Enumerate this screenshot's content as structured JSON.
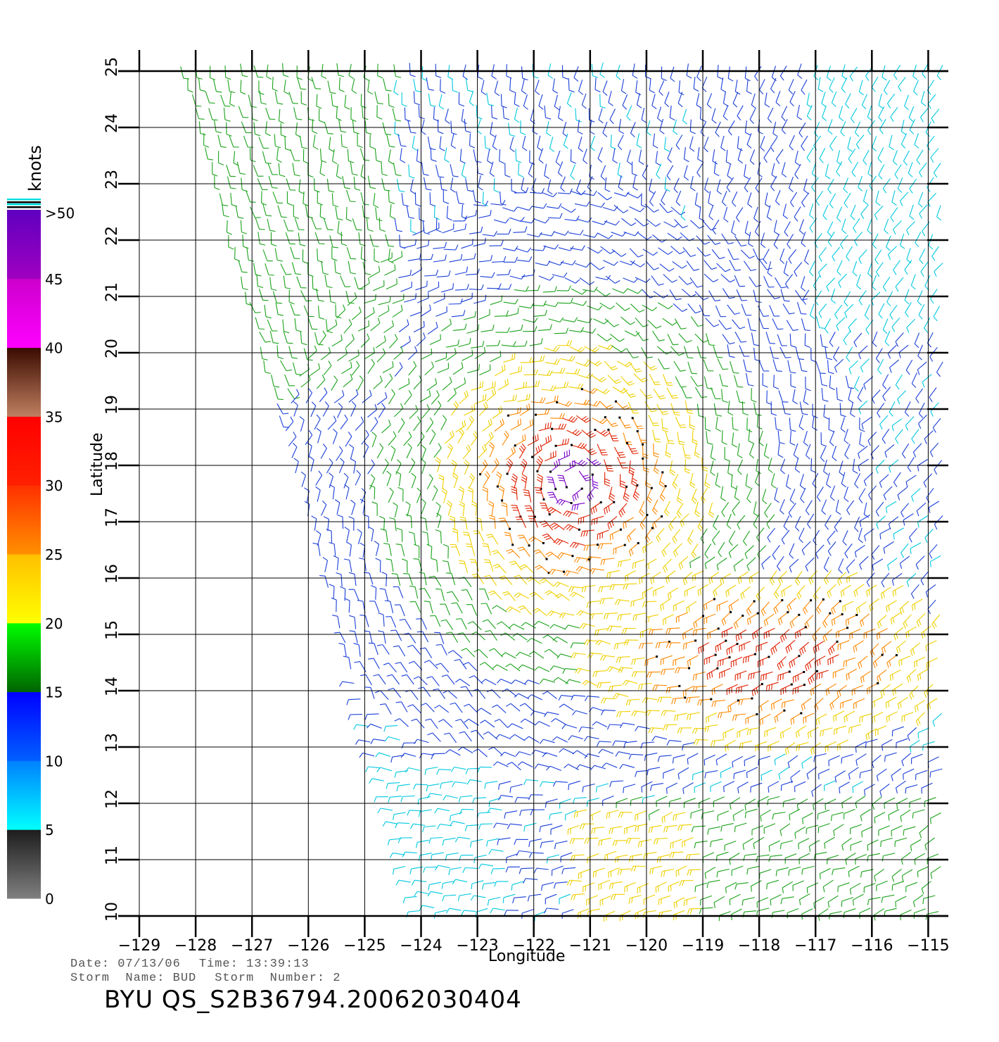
{
  "map": {
    "x_axis_label": "Longitude",
    "y_axis_label": "Latitude",
    "longitude_ticks": [
      "−129",
      "−128",
      "−127",
      "−126",
      "−125",
      "−124",
      "−123",
      "−122",
      "−121",
      "−120",
      "−119",
      "−118",
      "−117",
      "−116",
      "−115"
    ],
    "latitude_ticks": [
      "10",
      "11",
      "12",
      "13",
      "14",
      "15",
      "16",
      "17",
      "18",
      "19",
      "20",
      "21",
      "22",
      "23",
      "24",
      "25"
    ],
    "lon_range": [
      -129,
      -114.6
    ],
    "lat_range": [
      10,
      25
    ],
    "grid": true,
    "storm_center_approx": {
      "lon": -121.3,
      "lat": 17.7
    }
  },
  "colorbar": {
    "units_label": "knots",
    "tick_labels": [
      "0",
      "5",
      "10",
      "15",
      "20",
      "25",
      "30",
      "35",
      "40",
      "45",
      ">50"
    ],
    "segments": [
      {
        "from": 0,
        "to": 5,
        "colors": [
          "#808080",
          "#1c1c1c"
        ]
      },
      {
        "from": 5,
        "to": 10,
        "colors": [
          "#00ffff",
          "#0080ff"
        ]
      },
      {
        "from": 10,
        "to": 15,
        "colors": [
          "#0060ff",
          "#0000ff"
        ]
      },
      {
        "from": 15,
        "to": 20,
        "colors": [
          "#006400",
          "#00ff00"
        ]
      },
      {
        "from": 20,
        "to": 25,
        "colors": [
          "#ffff00",
          "#ffc000"
        ]
      },
      {
        "from": 25,
        "to": 30,
        "colors": [
          "#ff9000",
          "#ff3000"
        ]
      },
      {
        "from": 30,
        "to": 35,
        "colors": [
          "#ff2000",
          "#ff0000"
        ]
      },
      {
        "from": 35,
        "to": 40,
        "colors": [
          "#c08060",
          "#3a0a00"
        ]
      },
      {
        "from": 40,
        "to": 45,
        "colors": [
          "#ff00ff",
          "#cc00cc"
        ]
      },
      {
        "from": 45,
        "to": 50,
        "colors": [
          "#a000c0",
          "#6000c0"
        ]
      }
    ]
  },
  "wind_colors": {
    "calm": "#444444",
    "light": "#00c8e0",
    "moderate": "#1a3fd8",
    "fresh": "#1aa21a",
    "strong": "#f0d000",
    "gale": "#ff8800",
    "storm": "#e02000",
    "violent": "#7a00c8"
  },
  "footer": {
    "date_label": "Date: 07/13/06",
    "time_label": "Time: 13:39:13",
    "storm_name_label": "Storm  Name: BUD",
    "storm_number_label": "Storm  Number: 2",
    "product_id": "BYU  QS_S2B36794.20062030404"
  }
}
